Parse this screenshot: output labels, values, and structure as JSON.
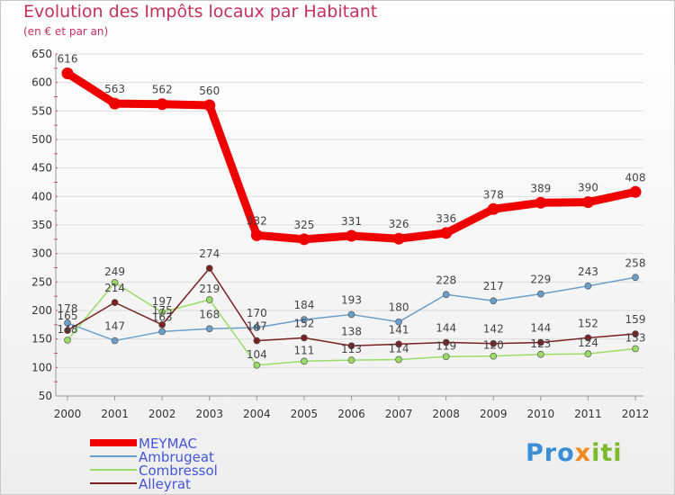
{
  "chart_data": {
    "type": "line",
    "title": "Evolution des Impôts locaux par Habitant",
    "subtitle": "(en € et par an)",
    "xlabel": "",
    "ylabel": "",
    "ylim": [
      50,
      650
    ],
    "yticks": [
      50,
      100,
      150,
      200,
      250,
      300,
      350,
      400,
      450,
      500,
      550,
      600,
      650
    ],
    "categories": [
      "2000",
      "2001",
      "2002",
      "2003",
      "2004",
      "2005",
      "2006",
      "2007",
      "2008",
      "2009",
      "2010",
      "2011",
      "2012"
    ],
    "series": [
      {
        "name": "MEYMAC",
        "color": "#ee0000",
        "values": [
          616,
          563,
          562,
          560,
          332,
          325,
          331,
          326,
          336,
          378,
          389,
          390,
          408
        ]
      },
      {
        "name": "Ambrugeat",
        "color": "#6b9fcb",
        "values": [
          178,
          147,
          163,
          168,
          170,
          184,
          193,
          180,
          228,
          217,
          229,
          243,
          258
        ]
      },
      {
        "name": "Combressol",
        "color": "#99dd66",
        "values": [
          148,
          249,
          197,
          219,
          104,
          111,
          113,
          114,
          119,
          120,
          123,
          124,
          133
        ]
      },
      {
        "name": "Alleyrat",
        "color": "#7a2020",
        "values": [
          165,
          214,
          175,
          274,
          147,
          152,
          138,
          141,
          144,
          142,
          144,
          152,
          159
        ]
      }
    ]
  },
  "logo": {
    "part1": "Pro",
    "part2": "x",
    "part3": "iti"
  }
}
